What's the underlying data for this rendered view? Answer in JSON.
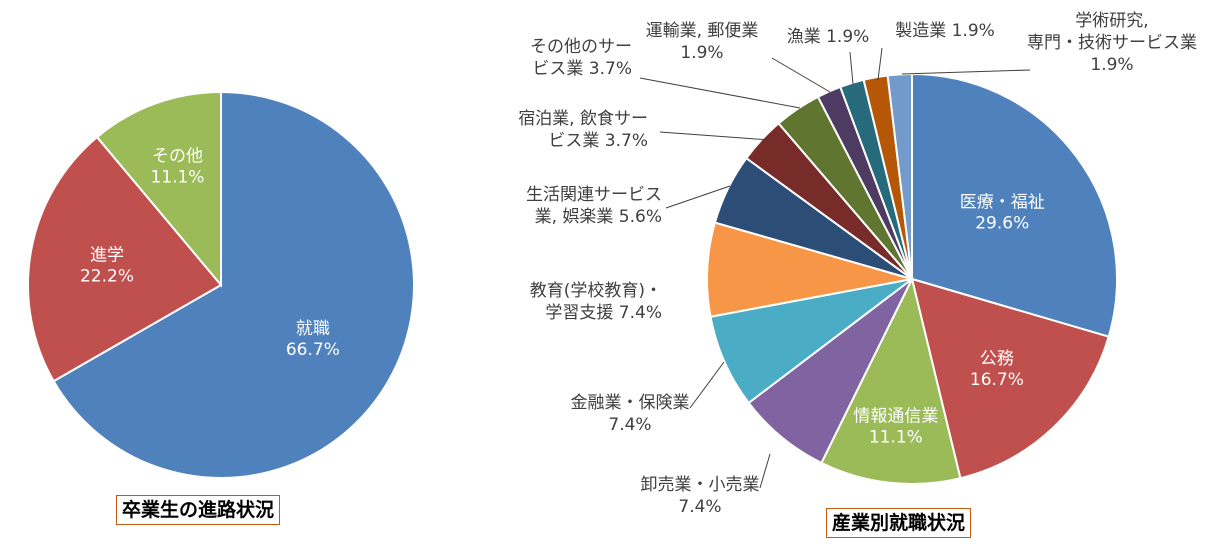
{
  "chart_data": [
    {
      "type": "pie",
      "title": "卒業生の進路状況",
      "slices": [
        {
          "label": "就職",
          "value": 66.7,
          "value_text": "66.7%",
          "color": "#4f81bd"
        },
        {
          "label": "進学",
          "value": 22.2,
          "value_text": "22.2%",
          "color": "#c0504d"
        },
        {
          "label": "その他",
          "value": 11.1,
          "value_text": "11.1%",
          "color": "#9bbb59"
        }
      ]
    },
    {
      "type": "pie",
      "title": "産業別就職状況",
      "slices": [
        {
          "label": "医療・福祉",
          "value": 29.6,
          "value_text": "29.6%",
          "color": "#4f81bd"
        },
        {
          "label": "公務",
          "value": 16.7,
          "value_text": "16.7%",
          "color": "#c0504d"
        },
        {
          "label": "情報通信業",
          "value": 11.1,
          "value_text": "11.1%",
          "color": "#9bbb59"
        },
        {
          "label": "卸売業・小売業",
          "value": 7.4,
          "value_text": "7.4%",
          "color": "#8064a2"
        },
        {
          "label": "金融業・保険業",
          "value": 7.4,
          "value_text": "7.4%",
          "color": "#4bacc6"
        },
        {
          "label": "教育(学校教育)・学習支援",
          "value": 7.4,
          "value_text": "7.4%",
          "color": "#f79646"
        },
        {
          "label": "生活関連サービス業, 娯楽業",
          "value": 5.6,
          "value_text": "5.6%",
          "color": "#2c4d75"
        },
        {
          "label": "宿泊業, 飲食サービス業",
          "value": 3.7,
          "value_text": "3.7%",
          "color": "#772c2a"
        },
        {
          "label": "その他のサービス業",
          "value": 3.7,
          "value_text": "3.7%",
          "color": "#5f7530"
        },
        {
          "label": "運輸業, 郵便業",
          "value": 1.9,
          "value_text": "1.9%",
          "color": "#4d3b62"
        },
        {
          "label": "漁業",
          "value": 1.9,
          "value_text": "1.9%",
          "color": "#276a7c"
        },
        {
          "label": "製造業",
          "value": 1.9,
          "value_text": "1.9%",
          "color": "#b65708"
        },
        {
          "label": "学術研究, 専門・技術サービス業",
          "value": 1.9,
          "value_text": "1.9%",
          "color": "#729aca"
        }
      ]
    }
  ]
}
